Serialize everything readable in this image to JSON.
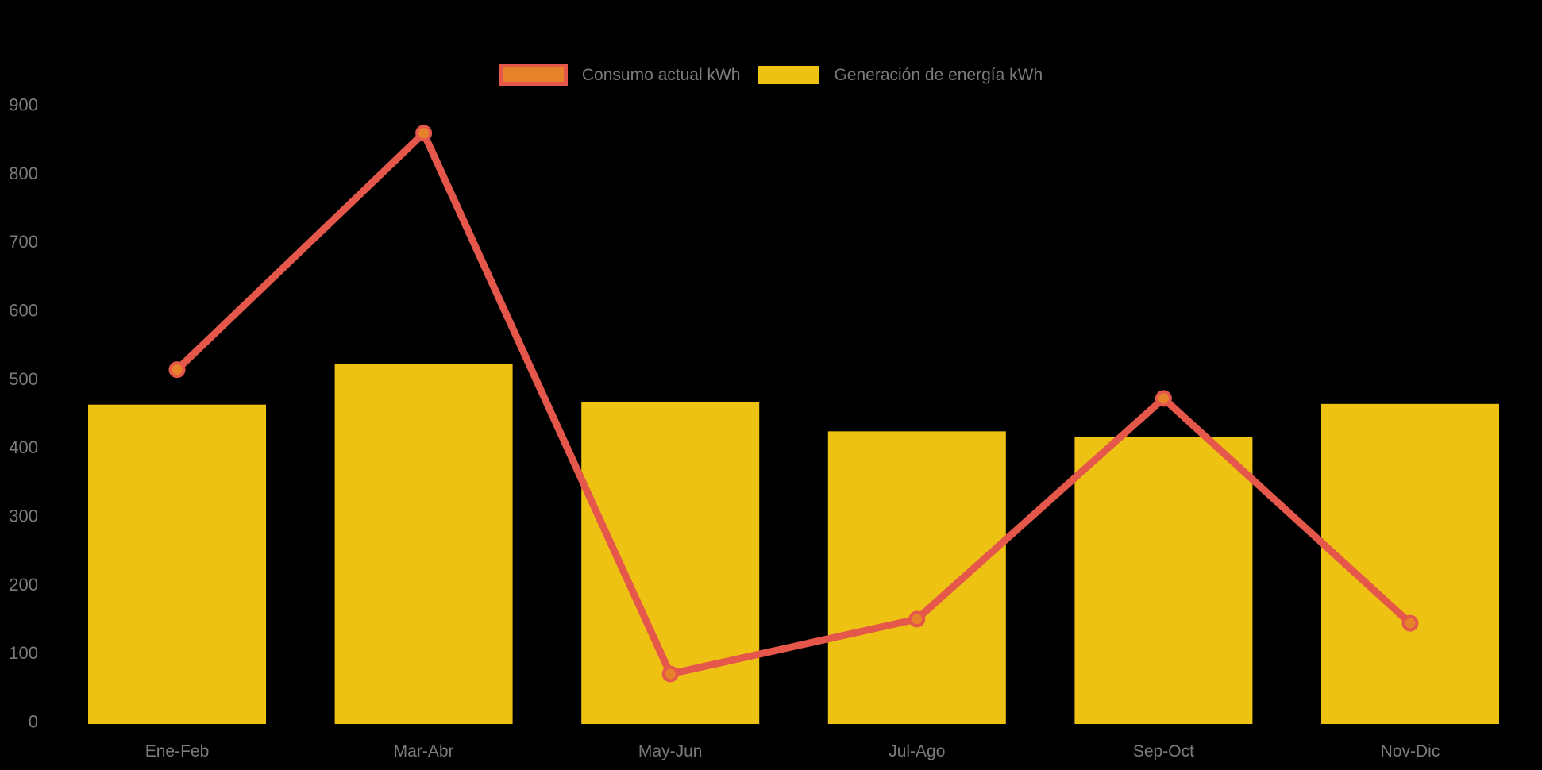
{
  "legend": {
    "items": [
      {
        "label": "Consumo actual kWh"
      },
      {
        "label": "Generación de energía kWh"
      }
    ]
  },
  "chart_data": {
    "type": "bar+line",
    "title": "",
    "xlabel": "",
    "ylabel": "",
    "categories": [
      "Ene-Feb",
      "Mar-Abr",
      "May-Jun",
      "Jul-Ago",
      "Sep-Oct",
      "Nov-Dic"
    ],
    "series": [
      {
        "name": "Consumo actual kWh",
        "type": "line",
        "line_color": "#E4574A",
        "marker_fill": "#E6832A",
        "values": [
          517,
          862,
          73,
          153,
          475,
          147
        ]
      },
      {
        "name": "Generación de energía kWh",
        "type": "bar",
        "bar_color": "#EEC213",
        "values": [
          466,
          525,
          470,
          427,
          419,
          467
        ]
      }
    ],
    "ylim": [
      0,
      900
    ],
    "yticks": [
      0,
      100,
      200,
      300,
      400,
      500,
      600,
      700,
      800,
      900
    ],
    "grid": false,
    "legend_position": "top",
    "axis_label_color": "#7b7b7b",
    "background": "#000000"
  }
}
